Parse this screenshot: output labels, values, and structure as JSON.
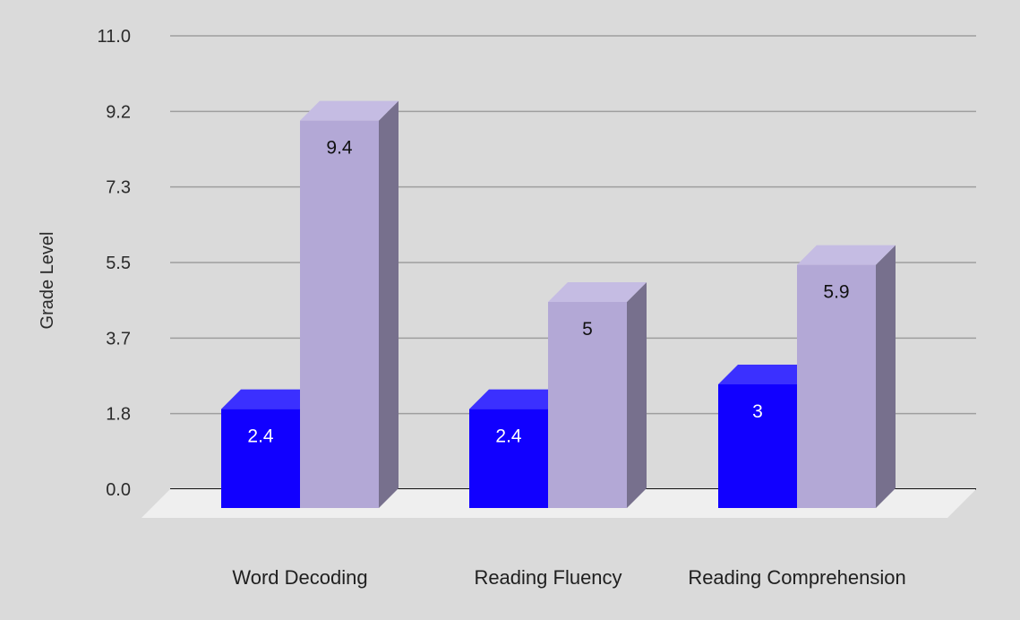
{
  "chart_data": {
    "type": "bar",
    "title": "",
    "xlabel": "",
    "ylabel": "Grade Level",
    "categories": [
      "Word Decoding",
      "Reading Fluency",
      "Reading Comprehension"
    ],
    "series": [
      {
        "values": [
          2.4,
          2.4,
          3
        ],
        "color": "#1100ff",
        "top_color": "#3b30ff",
        "label_color": "#ffffff"
      },
      {
        "values": [
          9.4,
          5,
          5.9
        ],
        "color": "#b3a8d6",
        "top_color": "#c5bce3",
        "side_color": "#77708d",
        "label_color": "#111111"
      }
    ],
    "data_labels": [
      [
        "2.4",
        "2.4",
        "3"
      ],
      [
        "9.4",
        "5",
        "5.9"
      ]
    ],
    "yticks": [
      "0.0",
      "1.8",
      "3.7",
      "5.5",
      "7.3",
      "9.2",
      "11.0"
    ],
    "ytick_values": [
      0,
      1.833,
      3.667,
      5.5,
      7.333,
      9.167,
      11
    ],
    "ylim": [
      0,
      11
    ],
    "grid": true,
    "style": "3d-column",
    "colors": {
      "background": "#dadada",
      "gridline": "#9e9e9e",
      "baseline": "#111111",
      "floor": "#efefef",
      "blue_side": "#0c00b8"
    }
  }
}
